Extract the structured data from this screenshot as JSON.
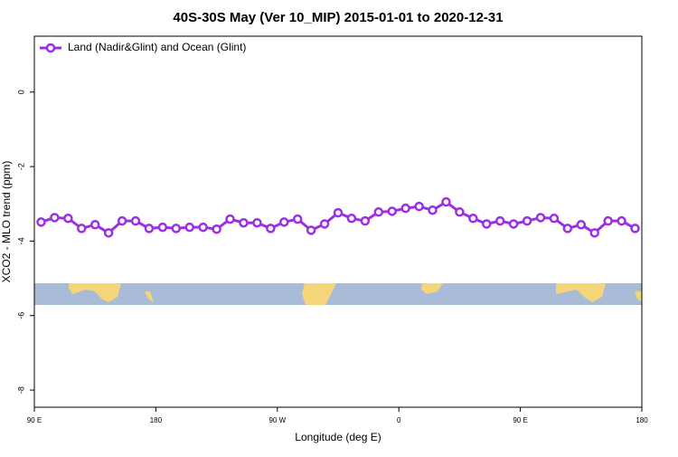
{
  "chart_data": {
    "type": "line",
    "title": "40S-30S May (Ver 10_MIP)   2015-01-01 to 2020-12-31",
    "xlabel": "Longitude (deg E)",
    "ylabel": "XCO2 - MLO trend (ppm)",
    "x": [
      95,
      105,
      115,
      125,
      135,
      145,
      155,
      165,
      175,
      185,
      195,
      205,
      215,
      225,
      235,
      245,
      255,
      265,
      275,
      285,
      295,
      305,
      315,
      325,
      335,
      345,
      355,
      365,
      375,
      385,
      395,
      405,
      415,
      425,
      435,
      445,
      455,
      465,
      475,
      485,
      495,
      505,
      515,
      525,
      535
    ],
    "series": [
      {
        "name": "Land (Nadir&Glint) and Ocean (Glint)",
        "color": "#9b30e0",
        "values": [
          -3.49,
          -3.37,
          -3.39,
          -3.66,
          -3.56,
          -3.78,
          -3.46,
          -3.46,
          -3.66,
          -3.63,
          -3.66,
          -3.63,
          -3.63,
          -3.68,
          -3.41,
          -3.51,
          -3.51,
          -3.66,
          -3.49,
          -3.41,
          -3.71,
          -3.54,
          -3.24,
          -3.39,
          -3.46,
          -3.22,
          -3.2,
          -3.12,
          -3.07,
          -3.17,
          -2.95,
          -3.22,
          -3.39,
          -3.54,
          -3.46,
          -3.54,
          -3.46,
          -3.37,
          -3.39,
          -3.66,
          -3.56,
          -3.78,
          -3.46,
          -3.46,
          -3.66
        ]
      }
    ],
    "xlim": [
      90,
      540
    ],
    "xticks": [
      {
        "value": 90,
        "label": "90 E"
      },
      180,
      {
        "value": 270,
        "label": "90 W"
      },
      {
        "value": 360,
        "label": "0"
      },
      {
        "value": 450,
        "label": "90 E"
      },
      {
        "value": 540,
        "label": "180"
      }
    ],
    "ylim": [
      -8.46,
      1.5
    ],
    "yticks": [
      0,
      -2,
      -4,
      -6,
      -8
    ],
    "legend": "top-left"
  }
}
